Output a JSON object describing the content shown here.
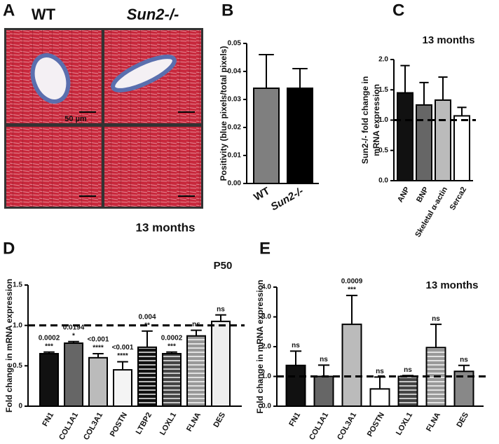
{
  "panel_a": {
    "letter": "A",
    "labels": [
      "WT",
      "Sun2-/-"
    ],
    "scale_bar": "50 µm",
    "caption": "13 months"
  },
  "chart_data": [
    {
      "type": "bar",
      "panel": "B",
      "ylabel": [
        "Positivity (blue pixels/total pixels)"
      ],
      "categories": [
        "WT",
        "Sun2-/-"
      ],
      "values": [
        0.034,
        0.034
      ],
      "errors": [
        0.012,
        0.007
      ],
      "colors": [
        "#7f7f7f",
        "#000000"
      ],
      "ylim": [
        0,
        0.05
      ],
      "yticks": [
        {
          "value": 0,
          "label": "0.00"
        },
        0.01,
        0.02,
        0.03,
        0.04,
        0.05
      ]
    },
    {
      "type": "bar",
      "panel": "C",
      "title": "13 months",
      "ylabel": [
        "Sun2-/- fold change in",
        "mRNA expression"
      ],
      "categories": [
        "ANP",
        "BNP",
        "Skeletal α-actin",
        "Serca2"
      ],
      "values": [
        1.45,
        1.25,
        1.33,
        1.07
      ],
      "errors": [
        0.45,
        0.37,
        0.38,
        0.14
      ],
      "colors": [
        "#111111",
        "#666666",
        "#bbbbbb",
        "#ffffff"
      ],
      "reference_line": 1,
      "ylim": [
        0,
        2
      ],
      "yticks": [
        {
          "value": 0,
          "label": "0.0"
        },
        0.5,
        {
          "value": 1,
          "label": "1.0"
        },
        1.5,
        {
          "value": 2,
          "label": "2.0"
        }
      ]
    },
    {
      "type": "bar",
      "panel": "D",
      "title": "P50",
      "ylabel": [
        "Fold change in mRNA expression"
      ],
      "categories": [
        "FN1",
        "COL1A1",
        "COL3A1",
        "POSTN",
        "LTBP2",
        "LOXL1",
        "FLNA",
        "DES"
      ],
      "values": [
        0.65,
        0.78,
        0.6,
        0.45,
        0.73,
        0.65,
        0.87,
        1.05
      ],
      "errors": [
        0.02,
        0.02,
        0.05,
        0.1,
        0.2,
        0.02,
        0.07,
        0.08
      ],
      "colors": [
        "#111111",
        "#666666",
        "#bbbbbb",
        "#f4f4f4",
        "#111111",
        "#444444",
        "#999999",
        "#eeeeee"
      ],
      "striped": [
        false,
        false,
        false,
        false,
        true,
        true,
        true,
        false
      ],
      "pvalues": [
        "0.0002",
        "0.0194",
        "<0.001",
        "<0.001",
        "0.004",
        "0.0002",
        null,
        null
      ],
      "significance": [
        "***",
        "*",
        "****",
        "****",
        "**",
        "***",
        "ns",
        "ns"
      ],
      "reference_line": 1,
      "ylim": [
        0,
        1.5
      ],
      "yticks": [
        0,
        0.5,
        {
          "value": 1,
          "label": "1.0"
        },
        1.5
      ]
    },
    {
      "type": "bar",
      "panel": "E",
      "title": "13 months",
      "ylabel": [
        "Fold change in mRNA expression"
      ],
      "categories": [
        "FN1",
        "COL1A1",
        "COL3A1",
        "POSTN",
        "LOXL1",
        "FLNA",
        "DES"
      ],
      "values": [
        1.37,
        1.0,
        2.75,
        0.58,
        1.0,
        1.97,
        1.17
      ],
      "errors": [
        0.48,
        0.38,
        0.97,
        0.4,
        0.03,
        0.78,
        0.2
      ],
      "colors": [
        "#111111",
        "#666666",
        "#bbbbbb",
        "#ffffff",
        "#444444",
        "#999999",
        "#888888"
      ],
      "striped": [
        false,
        false,
        false,
        false,
        true,
        true,
        false
      ],
      "pvalues": [
        null,
        null,
        "0.0009",
        null,
        null,
        null,
        null
      ],
      "significance": [
        "ns",
        "ns",
        "***",
        "ns",
        "ns",
        "ns",
        "ns"
      ],
      "reference_line": 1,
      "ylim": [
        0,
        4
      ],
      "yticks": [
        {
          "value": 0,
          "label": "0.0"
        },
        {
          "value": 1,
          "label": "1.0"
        },
        {
          "value": 2,
          "label": "2.0"
        },
        {
          "value": 3,
          "label": "3.0"
        },
        {
          "value": 4,
          "label": "4.0"
        }
      ]
    }
  ]
}
